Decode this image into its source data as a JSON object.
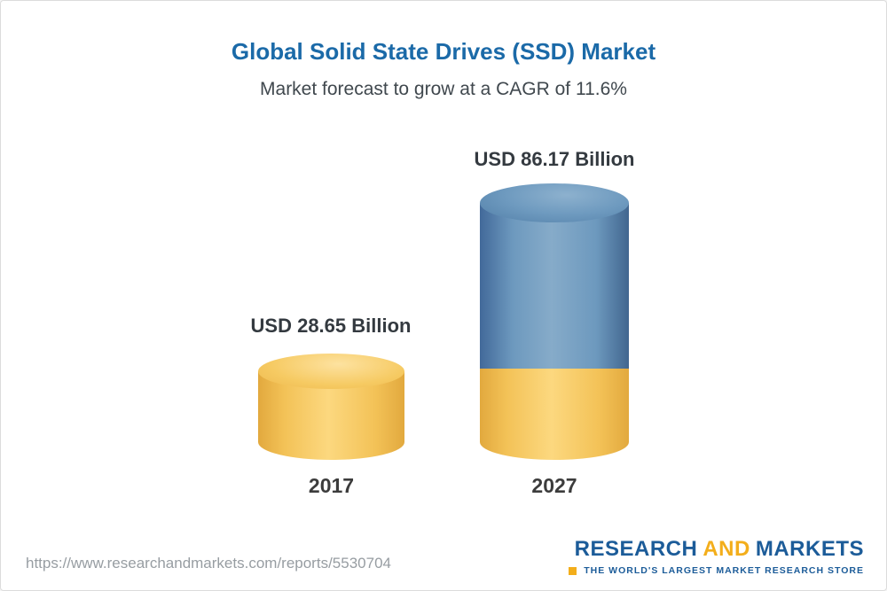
{
  "page": {
    "title": "Global Solid State Drives (SSD) Market",
    "subtitle": "Market forecast to grow at a CAGR of 11.6%"
  },
  "chart_data": {
    "type": "bar",
    "title": "Global Solid State Drives (SSD) Market",
    "subtitle": "Market forecast to grow at a CAGR of 11.6%",
    "unit": "USD Billion",
    "cagr": "11.6%",
    "categories": [
      "2017",
      "2027"
    ],
    "values": [
      28.65,
      86.17
    ],
    "bars": [
      {
        "year": "2017",
        "value": 28.65,
        "label": "USD 28.65 Billion",
        "color": "#F6C75F"
      },
      {
        "year": "2027",
        "value": 86.17,
        "label": "USD 86.17 Billion",
        "color": "#6D99BE",
        "base_color": "#F6C75F"
      }
    ],
    "colors": {
      "base": "#F6C75F",
      "growth": "#6D99BE"
    },
    "legend": "none",
    "grid": false
  },
  "footer": {
    "url": "https://www.researchandmarkets.com/reports/5530704",
    "logo": {
      "word1": "RESEARCH",
      "word2": "AND",
      "word3": "MARKETS",
      "tagline": "THE WORLD'S LARGEST MARKET RESEARCH STORE"
    }
  }
}
